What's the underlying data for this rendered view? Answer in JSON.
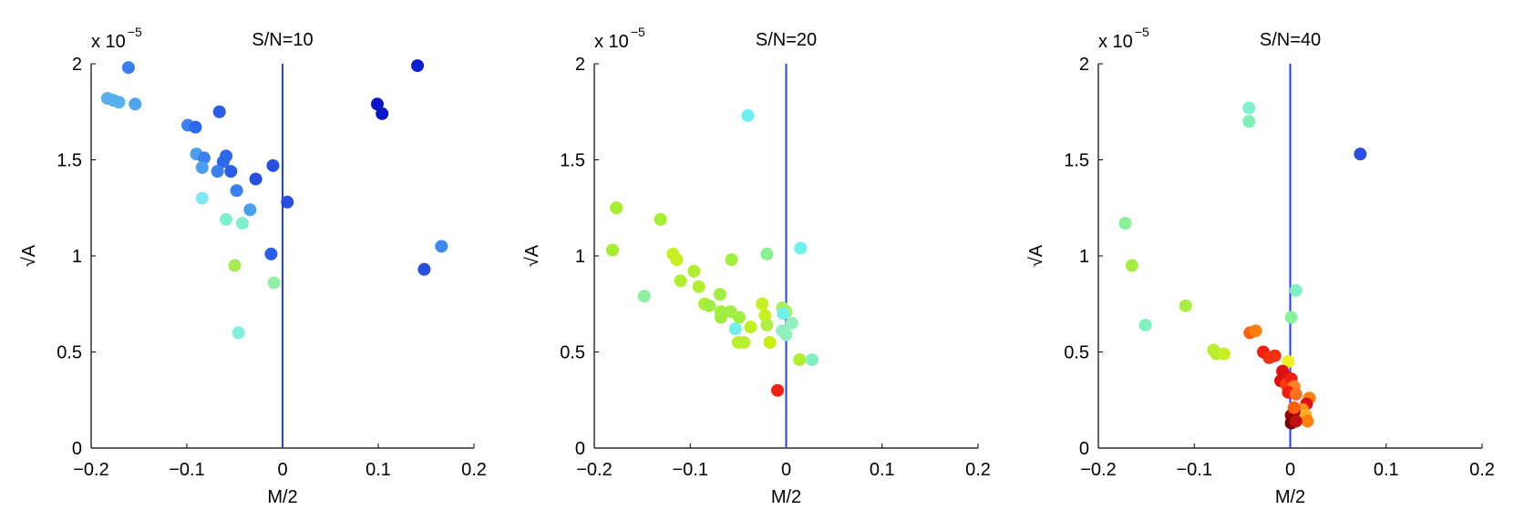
{
  "chart_data": [
    {
      "type": "scatter",
      "title": "S/N=10",
      "xlabel": "M/2",
      "ylabel": "√A",
      "exponent_base": "x 10",
      "exponent_power": "−5",
      "xlim": [
        -0.2,
        0.2
      ],
      "ylim": [
        0,
        2
      ],
      "xticks": [
        "−0.2",
        "−0.1",
        "0",
        "0.1",
        "0.2"
      ],
      "yticks": [
        "0",
        "0.5",
        "1",
        "1.5",
        "2"
      ],
      "vline_x": 0,
      "vline_color": "#1f3fff",
      "points": [
        {
          "x": -0.161,
          "y": 1.98,
          "color": "#3a7ef0"
        },
        {
          "x": -0.183,
          "y": 1.82,
          "color": "#56b0ee"
        },
        {
          "x": -0.177,
          "y": 1.81,
          "color": "#56b0ee"
        },
        {
          "x": -0.171,
          "y": 1.8,
          "color": "#56b0ee"
        },
        {
          "x": -0.154,
          "y": 1.79,
          "color": "#4da6ec"
        },
        {
          "x": -0.099,
          "y": 1.68,
          "color": "#3a80f0"
        },
        {
          "x": -0.091,
          "y": 1.67,
          "color": "#2e68ea"
        },
        {
          "x": -0.066,
          "y": 1.75,
          "color": "#2a5ee8"
        },
        {
          "x": -0.09,
          "y": 1.53,
          "color": "#4c9eee"
        },
        {
          "x": -0.082,
          "y": 1.51,
          "color": "#3a80f0"
        },
        {
          "x": -0.084,
          "y": 1.46,
          "color": "#4c9eee"
        },
        {
          "x": -0.059,
          "y": 1.52,
          "color": "#2e68ea"
        },
        {
          "x": -0.062,
          "y": 1.49,
          "color": "#2e68ea"
        },
        {
          "x": -0.068,
          "y": 1.44,
          "color": "#3a80f0"
        },
        {
          "x": -0.054,
          "y": 1.44,
          "color": "#2a5ee8"
        },
        {
          "x": -0.028,
          "y": 1.4,
          "color": "#2850e0"
        },
        {
          "x": -0.01,
          "y": 1.47,
          "color": "#2850e0"
        },
        {
          "x": -0.048,
          "y": 1.34,
          "color": "#3a80f0"
        },
        {
          "x": -0.084,
          "y": 1.3,
          "color": "#7fe8f2"
        },
        {
          "x": -0.034,
          "y": 1.24,
          "color": "#4c9eee"
        },
        {
          "x": 0.005,
          "y": 1.28,
          "color": "#2850e0"
        },
        {
          "x": -0.059,
          "y": 1.19,
          "color": "#7ff0cc"
        },
        {
          "x": -0.042,
          "y": 1.17,
          "color": "#7ff0cc"
        },
        {
          "x": -0.012,
          "y": 1.01,
          "color": "#2a5ee8"
        },
        {
          "x": -0.05,
          "y": 0.95,
          "color": "#a8ea50"
        },
        {
          "x": -0.009,
          "y": 0.86,
          "color": "#90f0a8"
        },
        {
          "x": -0.046,
          "y": 0.6,
          "color": "#7ff0e0"
        },
        {
          "x": 0.099,
          "y": 1.79,
          "color": "#0a14c8"
        },
        {
          "x": 0.104,
          "y": 1.74,
          "color": "#0a14c8"
        },
        {
          "x": 0.141,
          "y": 1.99,
          "color": "#0a1ed2"
        },
        {
          "x": 0.166,
          "y": 1.05,
          "color": "#3a8af0"
        },
        {
          "x": 0.148,
          "y": 0.93,
          "color": "#2850e0"
        }
      ]
    },
    {
      "type": "scatter",
      "title": "S/N=20",
      "xlabel": "M/2",
      "ylabel": "√A",
      "exponent_base": "x 10",
      "exponent_power": "−5",
      "xlim": [
        -0.2,
        0.2
      ],
      "ylim": [
        0,
        2
      ],
      "xticks": [
        "−0.2",
        "−0.1",
        "0",
        "0.1",
        "0.2"
      ],
      "yticks": [
        "0",
        "0.5",
        "1",
        "1.5",
        "2"
      ],
      "vline_x": 0,
      "vline_color": "#1f3fff",
      "points": [
        {
          "x": -0.04,
          "y": 1.73,
          "color": "#6ff0f0"
        },
        {
          "x": -0.177,
          "y": 1.25,
          "color": "#a6ee30"
        },
        {
          "x": -0.181,
          "y": 1.03,
          "color": "#a6ee30"
        },
        {
          "x": -0.131,
          "y": 1.19,
          "color": "#a6ee30"
        },
        {
          "x": -0.148,
          "y": 0.79,
          "color": "#8ef0a0"
        },
        {
          "x": -0.118,
          "y": 1.01,
          "color": "#c6f020"
        },
        {
          "x": -0.114,
          "y": 0.98,
          "color": "#c6f020"
        },
        {
          "x": -0.11,
          "y": 0.87,
          "color": "#b0ee30"
        },
        {
          "x": -0.096,
          "y": 0.92,
          "color": "#b0ee30"
        },
        {
          "x": -0.091,
          "y": 0.84,
          "color": "#b0ee30"
        },
        {
          "x": -0.085,
          "y": 0.75,
          "color": "#b0ee30"
        },
        {
          "x": -0.08,
          "y": 0.74,
          "color": "#a0ee40"
        },
        {
          "x": -0.069,
          "y": 0.8,
          "color": "#a0ee40"
        },
        {
          "x": -0.068,
          "y": 0.71,
          "color": "#a0ee40"
        },
        {
          "x": -0.058,
          "y": 0.71,
          "color": "#a0ee40"
        },
        {
          "x": -0.057,
          "y": 0.98,
          "color": "#a0ee40"
        },
        {
          "x": -0.068,
          "y": 0.68,
          "color": "#a0ee40"
        },
        {
          "x": -0.049,
          "y": 0.68,
          "color": "#a0ee40"
        },
        {
          "x": -0.053,
          "y": 0.62,
          "color": "#70f0e8"
        },
        {
          "x": -0.05,
          "y": 0.55,
          "color": "#b8f030"
        },
        {
          "x": -0.044,
          "y": 0.55,
          "color": "#b8f030"
        },
        {
          "x": -0.037,
          "y": 0.63,
          "color": "#c0f020"
        },
        {
          "x": -0.025,
          "y": 0.75,
          "color": "#c6f020"
        },
        {
          "x": -0.022,
          "y": 0.69,
          "color": "#c6f020"
        },
        {
          "x": -0.02,
          "y": 0.64,
          "color": "#b0f040"
        },
        {
          "x": -0.02,
          "y": 1.01,
          "color": "#88f090"
        },
        {
          "x": -0.017,
          "y": 0.55,
          "color": "#c8f010"
        },
        {
          "x": -0.004,
          "y": 0.73,
          "color": "#a8f060"
        },
        {
          "x": 0.0,
          "y": 0.71,
          "color": "#a8f060"
        },
        {
          "x": -0.003,
          "y": 0.7,
          "color": "#70f0e8"
        },
        {
          "x": 0.006,
          "y": 0.65,
          "color": "#90f0c0"
        },
        {
          "x": -0.004,
          "y": 0.61,
          "color": "#90f0c0"
        },
        {
          "x": 0.0,
          "y": 0.59,
          "color": "#90f0c0"
        },
        {
          "x": 0.015,
          "y": 1.04,
          "color": "#6ff0f0"
        },
        {
          "x": 0.014,
          "y": 0.46,
          "color": "#b0ee30"
        },
        {
          "x": 0.027,
          "y": 0.46,
          "color": "#80f0c0"
        },
        {
          "x": -0.009,
          "y": 0.3,
          "color": "#f02010"
        }
      ]
    },
    {
      "type": "scatter",
      "title": "S/N=40",
      "xlabel": "M/2",
      "ylabel": "√A",
      "exponent_base": "x 10",
      "exponent_power": "−5",
      "xlim": [
        -0.2,
        0.2
      ],
      "ylim": [
        0,
        2
      ],
      "xticks": [
        "−0.2",
        "−0.1",
        "0",
        "0.1",
        "0.2"
      ],
      "yticks": [
        "0",
        "0.5",
        "1",
        "1.5",
        "2"
      ],
      "vline_x": 0,
      "vline_color": "#1f3fff",
      "points": [
        {
          "x": -0.043,
          "y": 1.77,
          "color": "#7ff0d0"
        },
        {
          "x": -0.043,
          "y": 1.7,
          "color": "#7ff0b8"
        },
        {
          "x": 0.073,
          "y": 1.53,
          "color": "#2850e0"
        },
        {
          "x": -0.172,
          "y": 1.17,
          "color": "#88f098"
        },
        {
          "x": -0.165,
          "y": 0.95,
          "color": "#a6ee40"
        },
        {
          "x": -0.151,
          "y": 0.64,
          "color": "#80f0c0"
        },
        {
          "x": -0.109,
          "y": 0.74,
          "color": "#a6ee40"
        },
        {
          "x": -0.08,
          "y": 0.51,
          "color": "#b8f030"
        },
        {
          "x": -0.077,
          "y": 0.49,
          "color": "#b8f030"
        },
        {
          "x": -0.069,
          "y": 0.49,
          "color": "#c6f020"
        },
        {
          "x": 0.006,
          "y": 0.82,
          "color": "#80f0c0"
        },
        {
          "x": 0.001,
          "y": 0.68,
          "color": "#88f098"
        },
        {
          "x": -0.042,
          "y": 0.6,
          "color": "#ff6010"
        },
        {
          "x": -0.036,
          "y": 0.61,
          "color": "#ff8010"
        },
        {
          "x": -0.028,
          "y": 0.5,
          "color": "#f02010"
        },
        {
          "x": -0.022,
          "y": 0.47,
          "color": "#f03010"
        },
        {
          "x": -0.016,
          "y": 0.48,
          "color": "#f03010"
        },
        {
          "x": -0.002,
          "y": 0.45,
          "color": "#f0f020"
        },
        {
          "x": -0.008,
          "y": 0.4,
          "color": "#e01010"
        },
        {
          "x": -0.004,
          "y": 0.37,
          "color": "#e01010"
        },
        {
          "x": -0.01,
          "y": 0.35,
          "color": "#e01010"
        },
        {
          "x": -0.004,
          "y": 0.33,
          "color": "#ff4010"
        },
        {
          "x": 0.001,
          "y": 0.36,
          "color": "#f02010"
        },
        {
          "x": 0.004,
          "y": 0.32,
          "color": "#ff8020"
        },
        {
          "x": -0.002,
          "y": 0.29,
          "color": "#f02010"
        },
        {
          "x": 0.006,
          "y": 0.28,
          "color": "#ff7020"
        },
        {
          "x": 0.02,
          "y": 0.26,
          "color": "#ff8010"
        },
        {
          "x": 0.017,
          "y": 0.23,
          "color": "#e01010"
        },
        {
          "x": 0.013,
          "y": 0.2,
          "color": "#ff9020"
        },
        {
          "x": 0.016,
          "y": 0.17,
          "color": "#ffb020"
        },
        {
          "x": 0.018,
          "y": 0.14,
          "color": "#ff8010"
        },
        {
          "x": 0.004,
          "y": 0.19,
          "color": "#a00000"
        },
        {
          "x": 0.001,
          "y": 0.17,
          "color": "#a00000"
        },
        {
          "x": 0.003,
          "y": 0.15,
          "color": "#8a0000"
        },
        {
          "x": 0.001,
          "y": 0.13,
          "color": "#780000"
        },
        {
          "x": 0.006,
          "y": 0.14,
          "color": "#c01010"
        },
        {
          "x": 0.004,
          "y": 0.21,
          "color": "#ff6010"
        }
      ]
    }
  ]
}
